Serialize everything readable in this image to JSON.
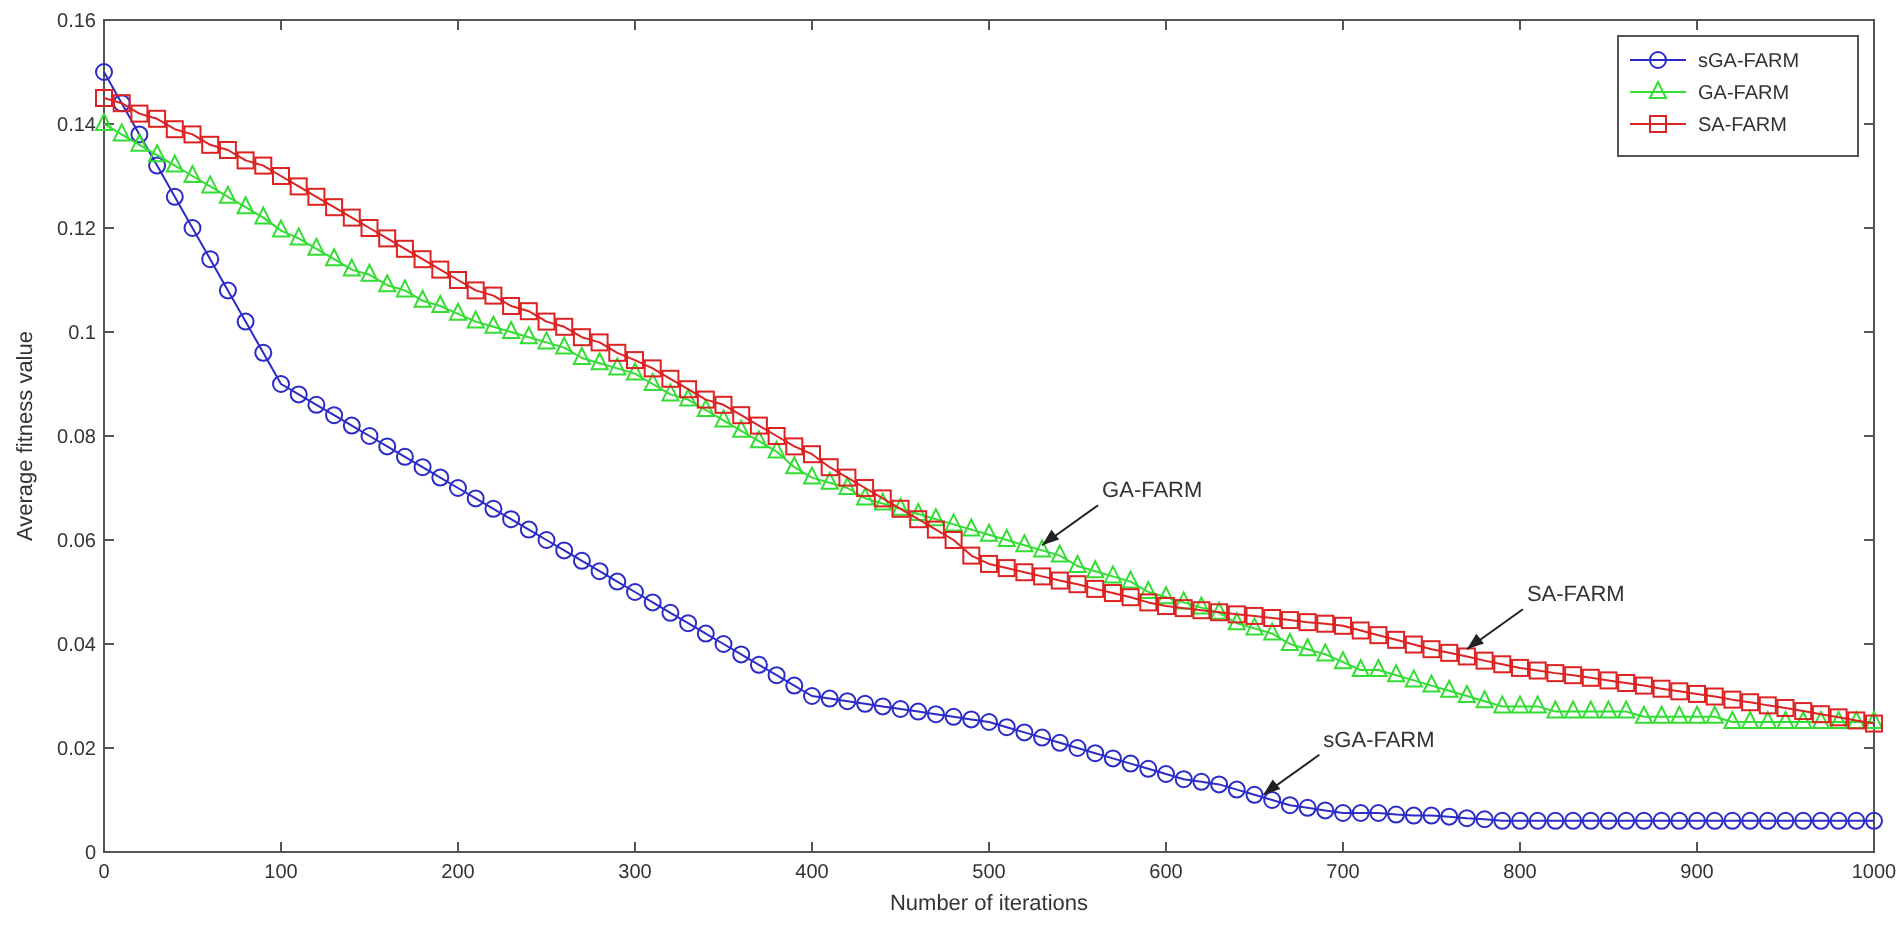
{
  "chart_data": {
    "type": "line",
    "xlabel": "Number of iterations",
    "ylabel": "Average fitness value",
    "x": [
      0,
      10,
      20,
      30,
      40,
      50,
      60,
      70,
      80,
      90,
      100,
      110,
      120,
      130,
      140,
      150,
      160,
      170,
      180,
      190,
      200,
      210,
      220,
      230,
      240,
      250,
      260,
      270,
      280,
      290,
      300,
      310,
      320,
      330,
      340,
      350,
      360,
      370,
      380,
      390,
      400,
      410,
      420,
      430,
      440,
      450,
      460,
      470,
      480,
      490,
      500,
      510,
      520,
      530,
      540,
      550,
      560,
      570,
      580,
      590,
      600,
      610,
      620,
      630,
      640,
      650,
      660,
      670,
      680,
      690,
      700,
      710,
      720,
      730,
      740,
      750,
      760,
      770,
      780,
      790,
      800,
      810,
      820,
      830,
      840,
      850,
      860,
      870,
      880,
      890,
      900,
      910,
      920,
      930,
      940,
      950,
      960,
      970,
      980,
      990,
      1000
    ],
    "series": [
      {
        "name": "sGA-FARM",
        "color": "#2b2bc8",
        "marker": "circle",
        "values": [
          0.15,
          0.144,
          0.138,
          0.132,
          0.126,
          0.12,
          0.114,
          0.108,
          0.102,
          0.096,
          0.09,
          0.088,
          0.086,
          0.084,
          0.082,
          0.08,
          0.078,
          0.076,
          0.074,
          0.072,
          0.07,
          0.068,
          0.066,
          0.064,
          0.062,
          0.06,
          0.058,
          0.056,
          0.054,
          0.052,
          0.05,
          0.048,
          0.046,
          0.044,
          0.042,
          0.04,
          0.038,
          0.036,
          0.034,
          0.032,
          0.03,
          0.0295,
          0.029,
          0.0285,
          0.028,
          0.0275,
          0.027,
          0.0265,
          0.026,
          0.0255,
          0.025,
          0.024,
          0.023,
          0.022,
          0.021,
          0.02,
          0.019,
          0.018,
          0.017,
          0.016,
          0.015,
          0.014,
          0.0135,
          0.013,
          0.012,
          0.011,
          0.01,
          0.009,
          0.0085,
          0.008,
          0.0075,
          0.0075,
          0.0075,
          0.0072,
          0.007,
          0.007,
          0.0068,
          0.0065,
          0.0063,
          0.006,
          0.006,
          0.006,
          0.006,
          0.006,
          0.006,
          0.006,
          0.006,
          0.006,
          0.006,
          0.006,
          0.006,
          0.006,
          0.006,
          0.006,
          0.006,
          0.006,
          0.006,
          0.006,
          0.006,
          0.006,
          0.006
        ]
      },
      {
        "name": "GA-FARM",
        "color": "#33dd33",
        "marker": "triangle",
        "values": [
          0.14,
          0.138,
          0.136,
          0.134,
          0.132,
          0.13,
          0.128,
          0.126,
          0.124,
          0.122,
          0.1195,
          0.118,
          0.116,
          0.114,
          0.112,
          0.111,
          0.109,
          0.108,
          0.106,
          0.105,
          0.1035,
          0.102,
          0.101,
          0.1,
          0.099,
          0.098,
          0.097,
          0.095,
          0.094,
          0.093,
          0.092,
          0.09,
          0.088,
          0.087,
          0.085,
          0.083,
          0.081,
          0.079,
          0.077,
          0.074,
          0.072,
          0.071,
          0.07,
          0.068,
          0.067,
          0.066,
          0.065,
          0.064,
          0.063,
          0.062,
          0.061,
          0.06,
          0.059,
          0.058,
          0.057,
          0.055,
          0.054,
          0.053,
          0.052,
          0.05,
          0.049,
          0.048,
          0.047,
          0.046,
          0.044,
          0.043,
          0.042,
          0.04,
          0.039,
          0.038,
          0.0365,
          0.035,
          0.035,
          0.034,
          0.033,
          0.032,
          0.031,
          0.03,
          0.029,
          0.028,
          0.028,
          0.028,
          0.027,
          0.027,
          0.027,
          0.027,
          0.027,
          0.026,
          0.026,
          0.026,
          0.026,
          0.026,
          0.025,
          0.025,
          0.025,
          0.025,
          0.025,
          0.025,
          0.025,
          0.025,
          0.025
        ]
      },
      {
        "name": "SA-FARM",
        "color": "#dd2222",
        "marker": "square",
        "values": [
          0.145,
          0.144,
          0.142,
          0.141,
          0.139,
          0.138,
          0.136,
          0.135,
          0.133,
          0.132,
          0.13,
          0.128,
          0.126,
          0.124,
          0.122,
          0.12,
          0.118,
          0.116,
          0.114,
          0.112,
          0.11,
          0.108,
          0.107,
          0.105,
          0.104,
          0.102,
          0.101,
          0.099,
          0.098,
          0.096,
          0.0946,
          0.093,
          0.091,
          0.089,
          0.087,
          0.086,
          0.084,
          0.082,
          0.08,
          0.078,
          0.0765,
          0.074,
          0.072,
          0.07,
          0.068,
          0.066,
          0.064,
          0.062,
          0.06,
          0.057,
          0.0554,
          0.0546,
          0.0538,
          0.053,
          0.0522,
          0.0515,
          0.0506,
          0.0498,
          0.049,
          0.048,
          0.0473,
          0.0469,
          0.0465,
          0.0461,
          0.0457,
          0.0454,
          0.045,
          0.0446,
          0.0442,
          0.0439,
          0.0435,
          0.0426,
          0.0417,
          0.0408,
          0.0399,
          0.039,
          0.0383,
          0.0376,
          0.0368,
          0.0361,
          0.0354,
          0.0349,
          0.0344,
          0.034,
          0.0335,
          0.033,
          0.0325,
          0.032,
          0.0314,
          0.0309,
          0.0304,
          0.0299,
          0.0293,
          0.0288,
          0.0282,
          0.0277,
          0.0271,
          0.0265,
          0.0259,
          0.0253,
          0.0247
        ]
      }
    ],
    "xlim": [
      0,
      1000
    ],
    "xticks": [
      0,
      100,
      200,
      300,
      400,
      500,
      600,
      700,
      800,
      900,
      1000
    ],
    "ylim": [
      0,
      0.16
    ],
    "yticks": [
      0,
      0.02,
      0.04,
      0.06,
      0.08,
      0.1,
      0.12,
      0.14,
      0.16
    ],
    "grid": false,
    "legend": "top right",
    "line_style": "solid",
    "annotations": [
      {
        "text": "GA-FARM",
        "x": 530,
        "y": 0.059
      },
      {
        "text": "SA-FARM",
        "x": 770,
        "y": 0.039
      },
      {
        "text": "sGA-FARM",
        "x": 655,
        "y": 0.011
      }
    ]
  }
}
